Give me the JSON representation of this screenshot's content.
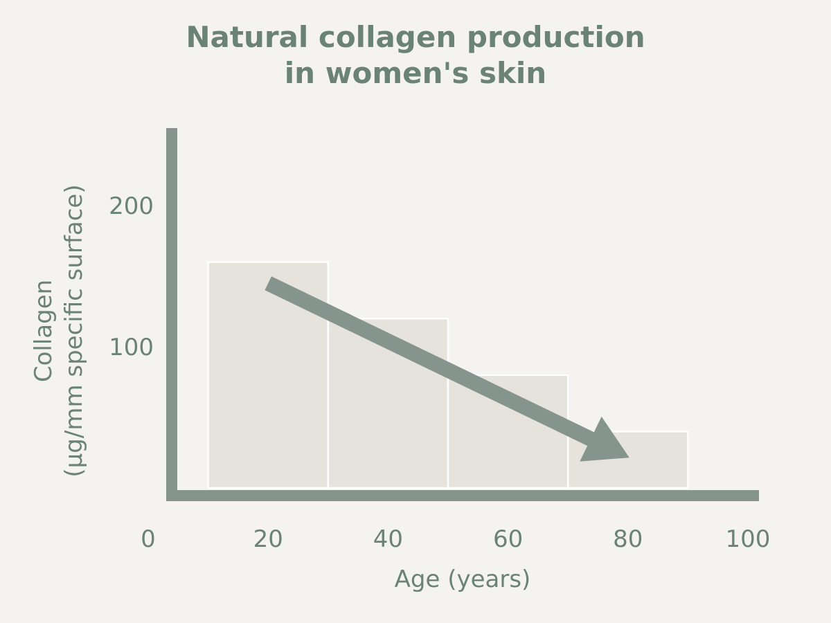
{
  "chart_data": {
    "type": "bar",
    "title_line1": "Natural collagen production",
    "title_line2": "in women's skin",
    "xlabel": "Age (years)",
    "ylabel_line1": "Collagen",
    "ylabel_line2": "(µg/mm specific surface)",
    "x_ticks": [
      "0",
      "20",
      "40",
      "60",
      "80",
      "100"
    ],
    "y_ticks": [
      "100",
      "200"
    ],
    "xlim": [
      0,
      100
    ],
    "ylim": [
      0,
      250
    ],
    "bars": [
      {
        "x0": 10,
        "x1": 30,
        "value": 160
      },
      {
        "x0": 30,
        "x1": 50,
        "value": 120
      },
      {
        "x0": 50,
        "x1": 70,
        "value": 80
      },
      {
        "x0": 70,
        "x1": 90,
        "value": 40
      }
    ],
    "trend_arrow": {
      "from": [
        20,
        145
      ],
      "to": [
        80,
        22
      ]
    },
    "grid": false,
    "colors": {
      "bar_fill": "#e5e3dc",
      "bar_stroke": "#ffffff",
      "axis": "#85958e",
      "arrow": "#85958e",
      "text": "#6a8375"
    }
  }
}
